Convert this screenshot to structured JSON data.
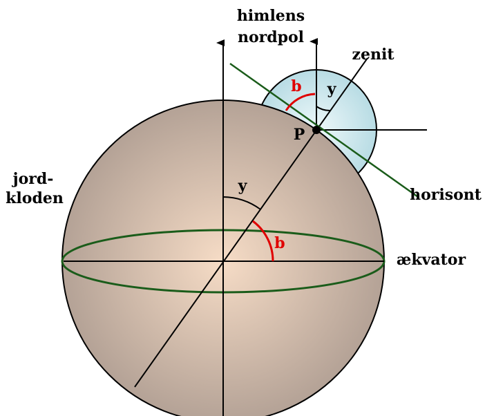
{
  "labels": {
    "pole_line1": "himlens",
    "pole_line2": "nordpol",
    "zenith": "zenit",
    "angle_b_top": "b",
    "angle_y_top": "y",
    "point": "P",
    "earth_line1": "jord-",
    "earth_line2": "kloden",
    "angle_y_center": "y",
    "horizon": "horisont",
    "angle_b_center": "b",
    "equator": "ækvator"
  }
}
